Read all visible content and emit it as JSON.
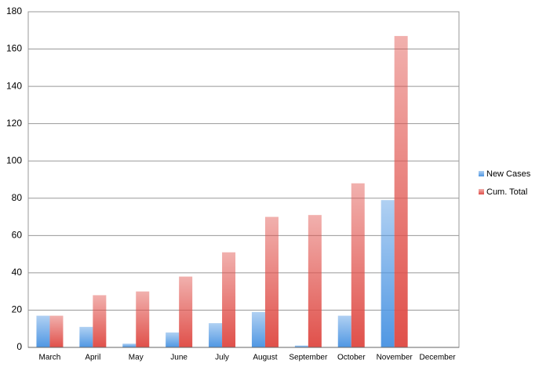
{
  "chart_data": {
    "type": "bar",
    "categories": [
      "March",
      "April",
      "May",
      "June",
      "July",
      "August",
      "September",
      "October",
      "November",
      "December"
    ],
    "series": [
      {
        "name": "New Cases",
        "color": "#4f97e3",
        "values": [
          17,
          11,
          2,
          8,
          13,
          19,
          1,
          17,
          79,
          null
        ]
      },
      {
        "name": "Cum. Total",
        "color": "#e0504a",
        "values": [
          17,
          28,
          30,
          38,
          51,
          70,
          71,
          88,
          167,
          null
        ]
      }
    ],
    "ylim": [
      0,
      180
    ],
    "yticks": [
      0,
      20,
      40,
      60,
      80,
      100,
      120,
      140,
      160,
      180
    ],
    "grid": true,
    "legend": "right"
  }
}
